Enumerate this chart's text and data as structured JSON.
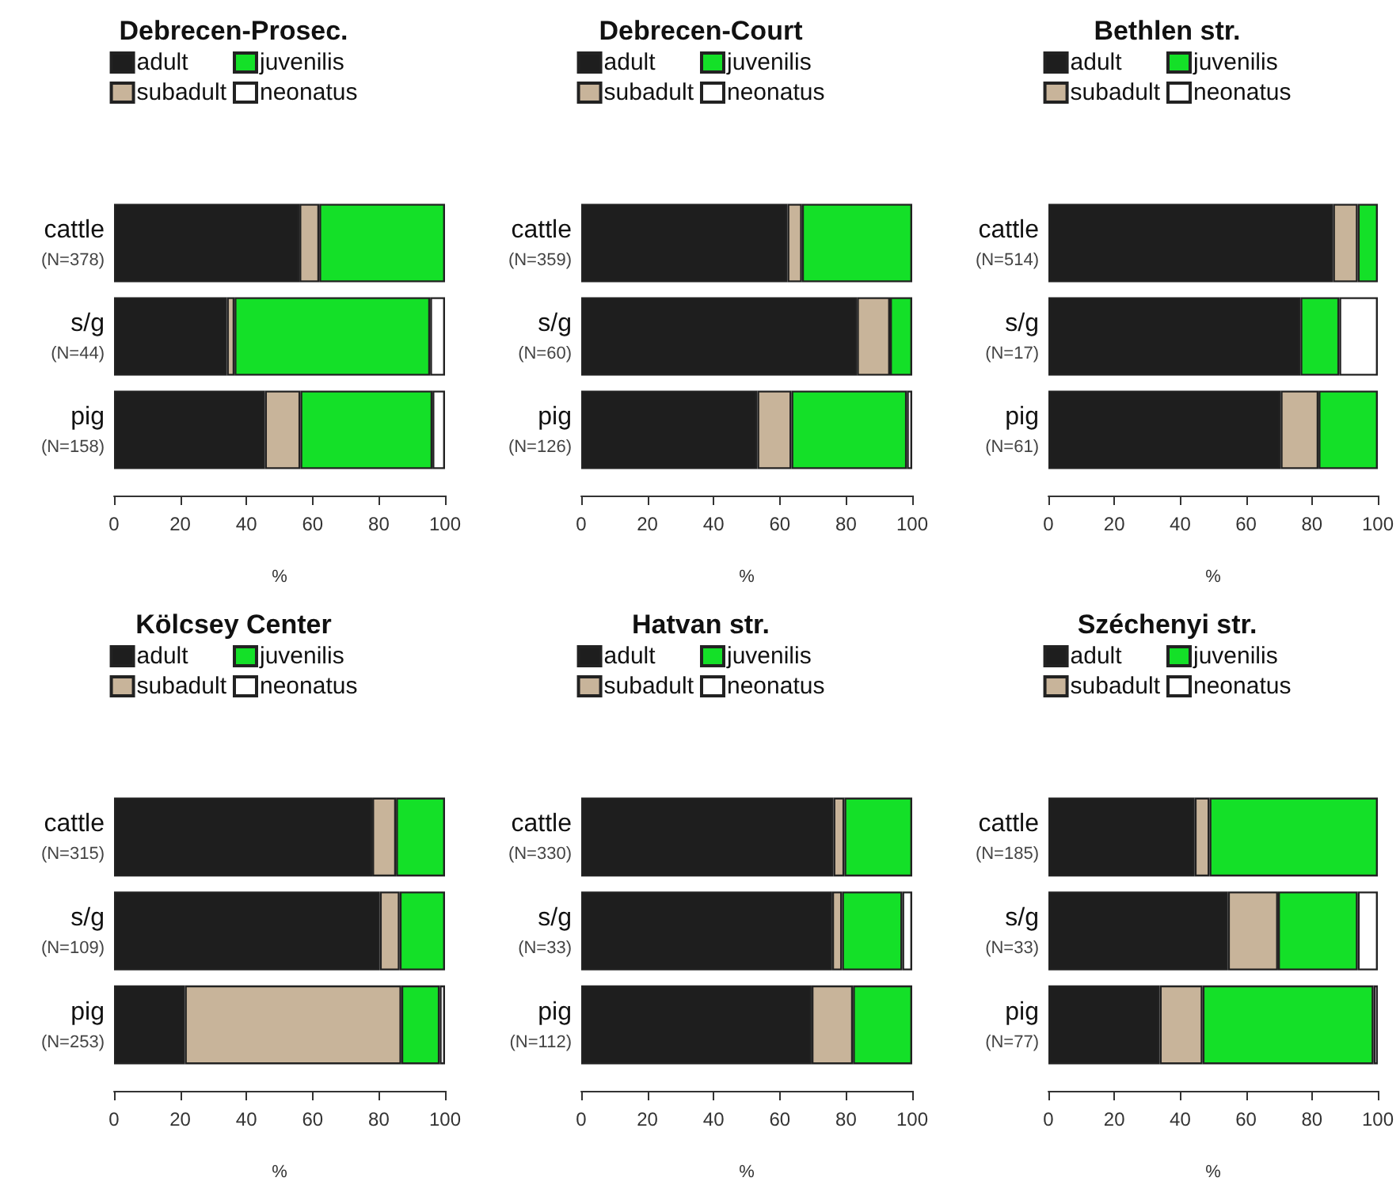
{
  "chart_data": [
    {
      "type": "bar",
      "orientation": "horizontal",
      "stacked": true,
      "title": "Debrecen-Prosec.",
      "xlabel": "%",
      "legend": "top",
      "grid": false,
      "categories": [
        "cattle\n(N=378)",
        "s/g\n(N=44)",
        "pig\n(N=158)"
      ],
      "xlim": [
        0,
        100
      ],
      "xticks": [
        0,
        20,
        40,
        60,
        80,
        100
      ],
      "series": [
        {
          "name": "adult",
          "color": "#1e1e1e",
          "values": [
            56,
            34.1,
            45.6
          ]
        },
        {
          "name": "subadult",
          "color": "#c8b49a",
          "values": [
            6,
            2.3,
            10.7
          ]
        },
        {
          "name": "juvenilis",
          "color": "#14e028",
          "values": [
            38,
            59.1,
            39.9
          ]
        },
        {
          "name": "neonatus",
          "color": "#ffffff",
          "values": [
            null,
            4.5,
            3.8
          ]
        }
      ]
    },
    {
      "type": "bar",
      "orientation": "horizontal",
      "stacked": true,
      "title": "Debrecen-Court",
      "xlabel": "%",
      "legend": "top",
      "grid": false,
      "categories": [
        "cattle\n(N=359)",
        "s/g\n(N=60)",
        "pig\n(N=126)"
      ],
      "xlim": [
        0,
        100
      ],
      "xticks": [
        0,
        20,
        40,
        60,
        80,
        100
      ],
      "series": [
        {
          "name": "adult",
          "color": "#1e1e1e",
          "values": [
            62.3,
            83.3,
            53.2
          ]
        },
        {
          "name": "subadult",
          "color": "#c8b49a",
          "values": [
            4.4,
            10,
            10.3
          ]
        },
        {
          "name": "juvenilis",
          "color": "#14e028",
          "values": [
            33.3,
            6.7,
            34.9
          ]
        },
        {
          "name": "neonatus",
          "color": "#ffffff",
          "values": [
            null,
            null,
            1.6
          ]
        }
      ]
    },
    {
      "type": "bar",
      "orientation": "horizontal",
      "stacked": true,
      "title": "Bethlen str.",
      "xlabel": "%",
      "legend": "top",
      "grid": false,
      "categories": [
        "cattle\n(N=514)",
        "s/g\n(N=17)",
        "pig\n(N=61)"
      ],
      "xlim": [
        0,
        100
      ],
      "xticks": [
        0,
        20,
        40,
        60,
        80,
        100
      ],
      "series": [
        {
          "name": "adult",
          "color": "#1e1e1e",
          "values": [
            86.4,
            76.5,
            70.5
          ]
        },
        {
          "name": "subadult",
          "color": "#c8b49a",
          "values": [
            7.5,
            null,
            11.5
          ]
        },
        {
          "name": "juvenilis",
          "color": "#14e028",
          "values": [
            6.1,
            11.8,
            18
          ]
        },
        {
          "name": "neonatus",
          "color": "#ffffff",
          "values": [
            null,
            11.7,
            null
          ]
        }
      ]
    },
    {
      "type": "bar",
      "orientation": "horizontal",
      "stacked": true,
      "title": "Kölcsey Center",
      "xlabel": "%",
      "legend": "top",
      "grid": false,
      "categories": [
        "cattle\n(N=315)",
        "s/g\n(N=109)",
        "pig\n(N=253)"
      ],
      "xlim": [
        0,
        100
      ],
      "xticks": [
        0,
        20,
        40,
        60,
        80,
        100
      ],
      "series": [
        {
          "name": "adult",
          "color": "#1e1e1e",
          "values": [
            78,
            80.3,
            21.4
          ]
        },
        {
          "name": "subadult",
          "color": "#c8b49a",
          "values": [
            7.2,
            6,
            65.4
          ]
        },
        {
          "name": "juvenilis",
          "color": "#14e028",
          "values": [
            14.8,
            13.7,
            11.6
          ]
        },
        {
          "name": "neonatus",
          "color": "#ffffff",
          "values": [
            null,
            null,
            1.6
          ]
        }
      ]
    },
    {
      "type": "bar",
      "orientation": "horizontal",
      "stacked": true,
      "title": "Hatvan str.",
      "xlabel": "%",
      "legend": "top",
      "grid": false,
      "categories": [
        "cattle\n(N=330)",
        "s/g\n(N=33)",
        "pig\n(N=112)"
      ],
      "xlim": [
        0,
        100
      ],
      "xticks": [
        0,
        20,
        40,
        60,
        80,
        100
      ],
      "series": [
        {
          "name": "adult",
          "color": "#1e1e1e",
          "values": [
            76.2,
            75.8,
            69.6
          ]
        },
        {
          "name": "subadult",
          "color": "#c8b49a",
          "values": [
            3.3,
            3,
            12.5
          ]
        },
        {
          "name": "juvenilis",
          "color": "#14e028",
          "values": [
            20.5,
            18.2,
            17.9
          ]
        },
        {
          "name": "neonatus",
          "color": "#ffffff",
          "values": [
            null,
            3,
            null
          ]
        }
      ]
    },
    {
      "type": "bar",
      "orientation": "horizontal",
      "stacked": true,
      "title": "Széchenyi str.",
      "xlabel": "%",
      "legend": "top",
      "grid": false,
      "categories": [
        "cattle\n(N=185)",
        "s/g\n(N=33)",
        "pig\n(N=77)"
      ],
      "xlim": [
        0,
        100
      ],
      "xticks": [
        0,
        20,
        40,
        60,
        80,
        100
      ],
      "series": [
        {
          "name": "adult",
          "color": "#1e1e1e",
          "values": [
            44.4,
            54.5,
            33.8
          ]
        },
        {
          "name": "subadult",
          "color": "#c8b49a",
          "values": [
            4.5,
            15.2,
            13
          ]
        },
        {
          "name": "juvenilis",
          "color": "#14e028",
          "values": [
            51.1,
            24.2,
            51.9
          ]
        },
        {
          "name": "neonatus",
          "color": "#ffffff",
          "values": [
            null,
            6.1,
            1.3
          ]
        }
      ]
    }
  ]
}
